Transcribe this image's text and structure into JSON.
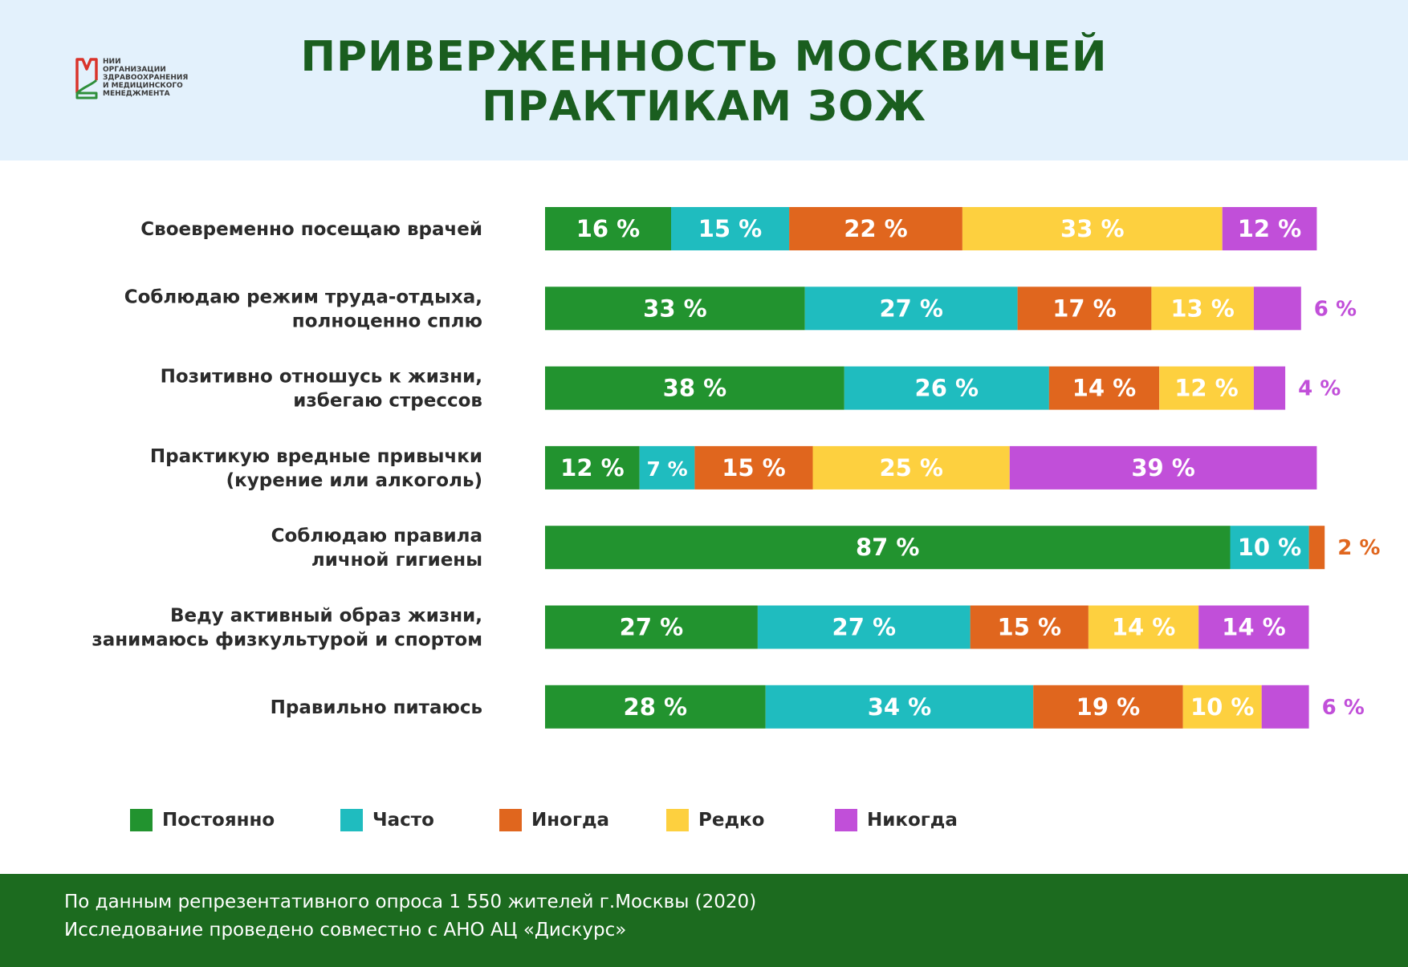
{
  "title": {
    "line1": "ПРИВЕРЖЕННОСТЬ МОСКВИЧЕЙ",
    "line2": "ПРАКТИКАМ ЗОЖ"
  },
  "logo": {
    "icon": "logo-mark-icon",
    "lines": [
      "НИИ",
      "ОРГАНИЗАЦИИ",
      "ЗДРАВООХРАНЕНИЯ",
      "И МЕДИЦИНСКОГО",
      "МЕНЕДЖМЕНТА"
    ]
  },
  "colors": {
    "green": "#22932f",
    "teal": "#1fbcbf",
    "orange": "#e0661e",
    "yellow": "#fdd03f",
    "purple": "#c14fd9",
    "header_bg": "#e3f1fc",
    "title": "#1a5e1f",
    "footer_bg": "#1c6b1f"
  },
  "chart_data": {
    "type": "bar",
    "orientation": "horizontal",
    "stacked": true,
    "unit": "%",
    "categories": [
      [
        "Своевременно посещаю врачей"
      ],
      [
        "Соблюдаю режим труда-отдыха,",
        "полноценно сплю"
      ],
      [
        "Позитивно отношусь к жизни,",
        "избегаю стрессов"
      ],
      [
        "Практикую вредные привычки",
        "(курение или алкоголь)"
      ],
      [
        "Соблюдаю правила",
        "личной гигиены"
      ],
      [
        "Веду активный образ жизни,",
        "занимаюсь физкультурой и спортом"
      ],
      [
        "Правильно питаюсь"
      ]
    ],
    "series": [
      {
        "name": "Постоянно",
        "color": "#22932f",
        "values": [
          16,
          33,
          38,
          12,
          87,
          27,
          28
        ]
      },
      {
        "name": "Часто",
        "color": "#1fbcbf",
        "values": [
          15,
          27,
          26,
          7,
          10,
          27,
          34
        ]
      },
      {
        "name": "Иногда",
        "color": "#e0661e",
        "values": [
          22,
          17,
          14,
          15,
          2,
          15,
          19
        ]
      },
      {
        "name": "Редко",
        "color": "#fdd03f",
        "values": [
          33,
          13,
          12,
          25,
          0,
          14,
          10
        ]
      },
      {
        "name": "Никогда",
        "color": "#c14fd9",
        "values": [
          12,
          6,
          4,
          39,
          0,
          14,
          6
        ]
      }
    ],
    "xlim": [
      0,
      100
    ],
    "legend": "bottom"
  },
  "legend": [
    {
      "label": "Постоянно",
      "color": "#22932f"
    },
    {
      "label": "Часто",
      "color": "#1fbcbf"
    },
    {
      "label": "Иногда",
      "color": "#e0661e"
    },
    {
      "label": "Редко",
      "color": "#fdd03f"
    },
    {
      "label": "Никогда",
      "color": "#c14fd9"
    }
  ],
  "footer": {
    "line1": "По данным репрезентативного опроса 1 550 жителей г.Москвы (2020)",
    "line2": "Исследование проведено совместно с АНО АЦ «Дискурс»"
  }
}
